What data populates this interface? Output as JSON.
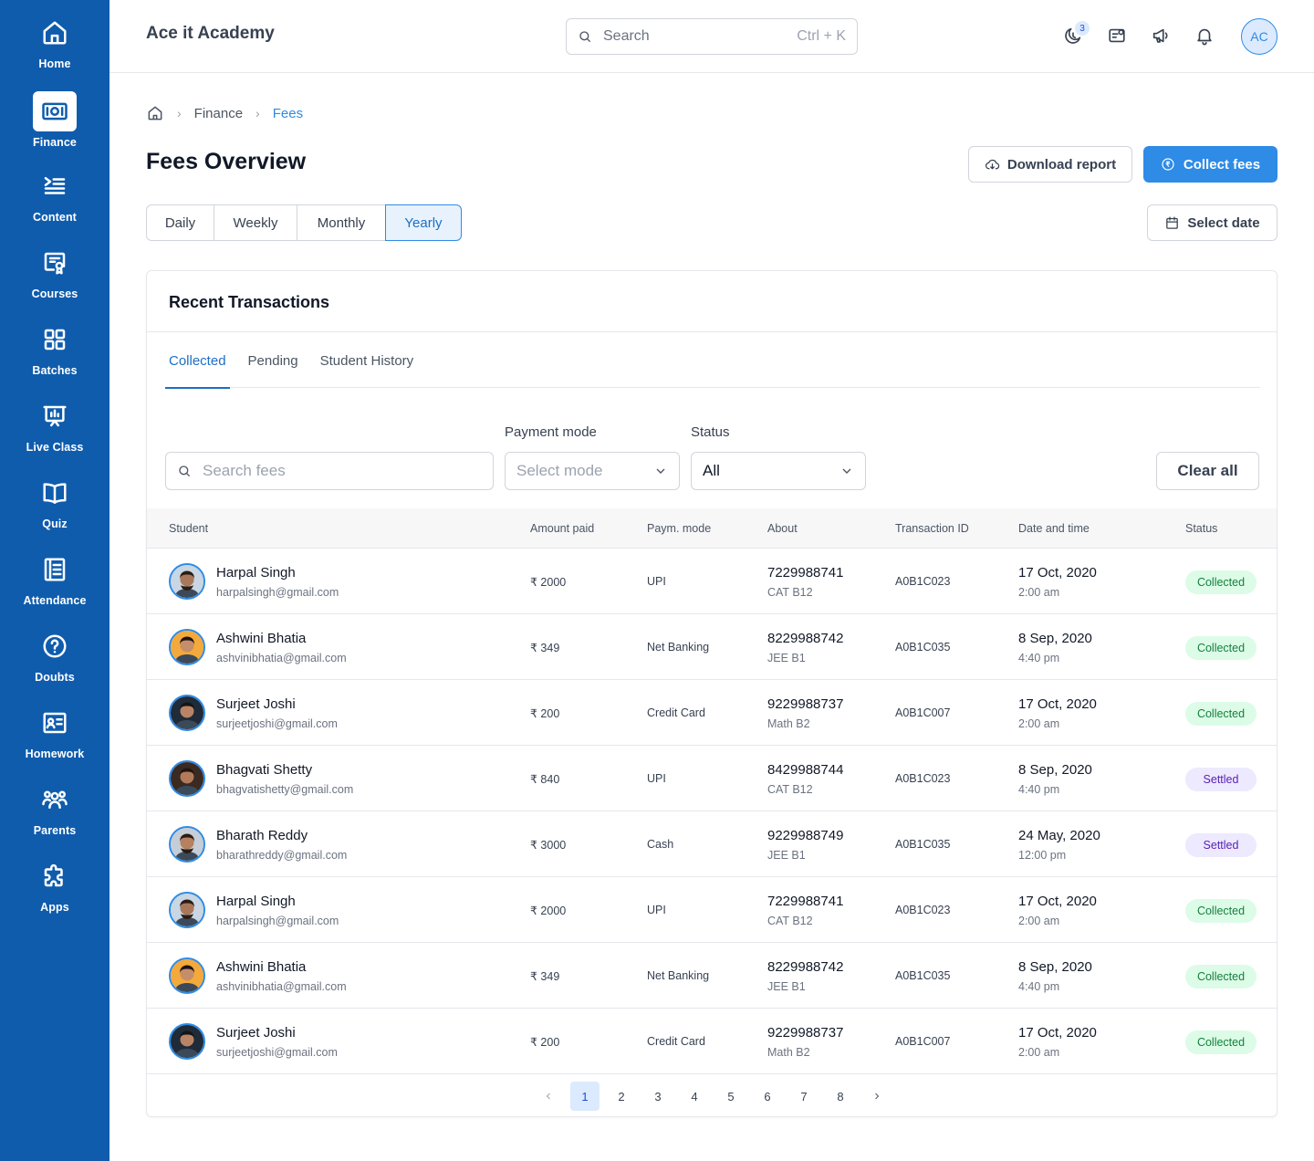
{
  "sidebar": {
    "items": [
      {
        "label": "Home",
        "icon": "home-icon"
      },
      {
        "label": "Finance",
        "icon": "money-icon",
        "active": true
      },
      {
        "label": "Content",
        "icon": "content-icon"
      },
      {
        "label": "Courses",
        "icon": "certificate-icon"
      },
      {
        "label": "Batches",
        "icon": "grid-icon"
      },
      {
        "label": "Live Class",
        "icon": "presentation-icon"
      },
      {
        "label": "Quiz",
        "icon": "book-icon"
      },
      {
        "label": "Attendance",
        "icon": "attendance-icon"
      },
      {
        "label": "Doubts",
        "icon": "question-icon"
      },
      {
        "label": "Homework",
        "icon": "id-card-icon"
      },
      {
        "label": "Parents",
        "icon": "people-icon"
      },
      {
        "label": "Apps",
        "icon": "puzzle-icon"
      }
    ]
  },
  "header": {
    "brand": "Ace it Academy",
    "search_placeholder": "Search",
    "search_shortcut": "Ctrl + K",
    "notification_count": "3",
    "avatar_initials": "AC"
  },
  "breadcrumb": {
    "items": [
      "Finance",
      "Fees"
    ]
  },
  "page": {
    "title": "Fees Overview",
    "download_label": "Download report",
    "collect_label": "Collect fees",
    "select_date_label": "Select date",
    "periods": [
      "Daily",
      "Weekly",
      "Monthly",
      "Yearly"
    ],
    "active_period": "Yearly"
  },
  "transactions": {
    "title": "Recent Transactions",
    "tabs": [
      "Collected",
      "Pending",
      "Student History"
    ],
    "active_tab": "Collected",
    "filters": {
      "search_placeholder": "Search fees",
      "payment_mode_label": "Payment mode",
      "payment_mode_placeholder": "Select mode",
      "status_label": "Status",
      "status_value": "All",
      "clear_label": "Clear all"
    },
    "columns": [
      "Student",
      "Amount paid",
      "Paym. mode",
      "About",
      "Transaction ID",
      "Date and time",
      "Status"
    ],
    "rows": [
      {
        "name": "Harpal Singh",
        "email": "harpalsingh@gmail.com",
        "amount": "₹ 2000",
        "mode": "UPI",
        "phone": "7229988741",
        "batch": "CAT B12",
        "txn": "A0B1C023",
        "date": "17 Oct, 2020",
        "time": "2:00 am",
        "status": "Collected",
        "avatar": {
          "skin": "#a9775a",
          "hair": "#2b1d16",
          "bg": "#c9d6e3",
          "beard": true
        }
      },
      {
        "name": "Ashwini Bhatia",
        "email": "ashvinibhatia@gmail.com",
        "amount": "₹ 349",
        "mode": "Net Banking",
        "phone": "8229988742",
        "batch": "JEE B1",
        "txn": "A0B1C035",
        "date": "8 Sep, 2020",
        "time": "4:40 pm",
        "status": "Collected",
        "avatar": {
          "skin": "#c58d6a",
          "hair": "#1f140f",
          "bg": "#f3a93b",
          "beard": false
        }
      },
      {
        "name": "Surjeet Joshi",
        "email": "surjeetjoshi@gmail.com",
        "amount": "₹ 200",
        "mode": "Credit Card",
        "phone": "9229988737",
        "batch": "Math B2",
        "txn": "A0B1C007",
        "date": "17 Oct, 2020",
        "time": "2:00 am",
        "status": "Collected",
        "avatar": {
          "skin": "#b98466",
          "hair": "#151515",
          "bg": "#1f2b38",
          "beard": false
        }
      },
      {
        "name": "Bhagvati Shetty",
        "email": "bhagvatishetty@gmail.com",
        "amount": "₹ 840",
        "mode": "UPI",
        "phone": "8429988744",
        "batch": "CAT B12",
        "txn": "A0B1C023",
        "date": "8 Sep, 2020",
        "time": "4:40 pm",
        "status": "Settled",
        "avatar": {
          "skin": "#b07a5b",
          "hair": "#24160f",
          "bg": "#3a2a22",
          "beard": false
        }
      },
      {
        "name": "Bharath Reddy",
        "email": "bharathreddy@gmail.com",
        "amount": "₹ 3000",
        "mode": "Cash",
        "phone": "9229988749",
        "batch": "JEE B1",
        "txn": "A0B1C035",
        "date": "24 May, 2020",
        "time": "12:00 pm",
        "status": "Settled",
        "avatar": {
          "skin": "#b68061",
          "hair": "#2a1c14",
          "bg": "#c5cdd6",
          "beard": true
        }
      },
      {
        "name": "Harpal Singh",
        "email": "harpalsingh@gmail.com",
        "amount": "₹ 2000",
        "mode": "UPI",
        "phone": "7229988741",
        "batch": "CAT B12",
        "txn": "A0B1C023",
        "date": "17 Oct, 2020",
        "time": "2:00 am",
        "status": "Collected",
        "avatar": {
          "skin": "#a9775a",
          "hair": "#2b1d16",
          "bg": "#c9d6e3",
          "beard": true
        }
      },
      {
        "name": "Ashwini Bhatia",
        "email": "ashvinibhatia@gmail.com",
        "amount": "₹ 349",
        "mode": "Net Banking",
        "phone": "8229988742",
        "batch": "JEE B1",
        "txn": "A0B1C035",
        "date": "8 Sep, 2020",
        "time": "4:40 pm",
        "status": "Collected",
        "avatar": {
          "skin": "#c58d6a",
          "hair": "#1f140f",
          "bg": "#f3a93b",
          "beard": false
        }
      },
      {
        "name": "Surjeet Joshi",
        "email": "surjeetjoshi@gmail.com",
        "amount": "₹ 200",
        "mode": "Credit Card",
        "phone": "9229988737",
        "batch": "Math B2",
        "txn": "A0B1C007",
        "date": "17 Oct, 2020",
        "time": "2:00 am",
        "status": "Collected",
        "avatar": {
          "skin": "#b98466",
          "hair": "#151515",
          "bg": "#1f2b38",
          "beard": false
        }
      }
    ],
    "pagination": {
      "pages": [
        "1",
        "2",
        "3",
        "4",
        "5",
        "6",
        "7",
        "8"
      ],
      "current": "1"
    }
  },
  "colors": {
    "sidebar_bg": "#0f5cad",
    "accent": "#2e8be6",
    "collected_bg": "#dcfce7",
    "collected_text": "#15803d",
    "settled_bg": "#ede9fe",
    "settled_text": "#5b21b6"
  }
}
